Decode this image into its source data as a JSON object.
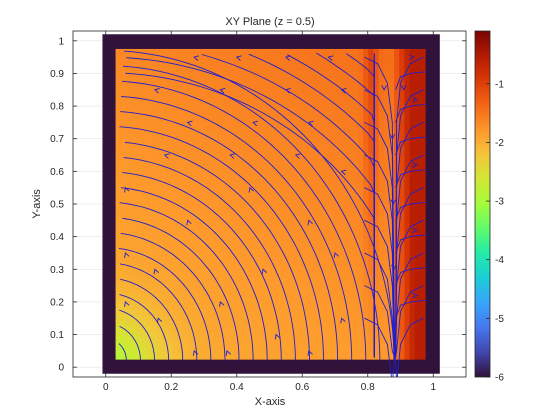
{
  "chart_data": {
    "type": "heatmap",
    "title": "XY Plane (z = 0.5)",
    "xlabel": "X-axis",
    "ylabel": "Y-axis",
    "xlim": [
      -0.1,
      1.1
    ],
    "ylim": [
      -0.03,
      1.03
    ],
    "x_ticks": [
      0,
      0.2,
      0.4,
      0.6,
      0.8,
      1
    ],
    "x_tick_labels": [
      "0",
      "0.2",
      "0.4",
      "0.6",
      "0.8",
      "1"
    ],
    "y_ticks": [
      0,
      0.1,
      0.2,
      0.3,
      0.4,
      0.5,
      0.6,
      0.7,
      0.8,
      0.9,
      1
    ],
    "y_tick_labels": [
      "0",
      "0.1",
      "0.2",
      "0.3",
      "0.4",
      "0.5",
      "0.6",
      "0.7",
      "0.8",
      "0.9",
      "1"
    ],
    "grid": true,
    "colorbar": {
      "range": [
        -6,
        -0.1
      ],
      "ticks": [
        -1,
        -2,
        -3,
        -4,
        -5,
        -6
      ],
      "tick_labels": [
        "-1",
        "-2",
        "-3",
        "-4",
        "-5",
        "-6"
      ],
      "colormap": "turbo"
    },
    "field_extent": {
      "x": [
        -0.01,
        1.02
      ],
      "y": [
        -0.02,
        1.02
      ]
    },
    "boundary_value": -6,
    "interior_value_range": [
      -2.9,
      -0.6
    ],
    "streamline_color": "#1f1fd0",
    "streamline_description": "Flow lines converge toward x ≈ 0.88 and exit downward there; left of it they curve up then left toward the top-left corner; right of it they curve out to the right edge."
  }
}
